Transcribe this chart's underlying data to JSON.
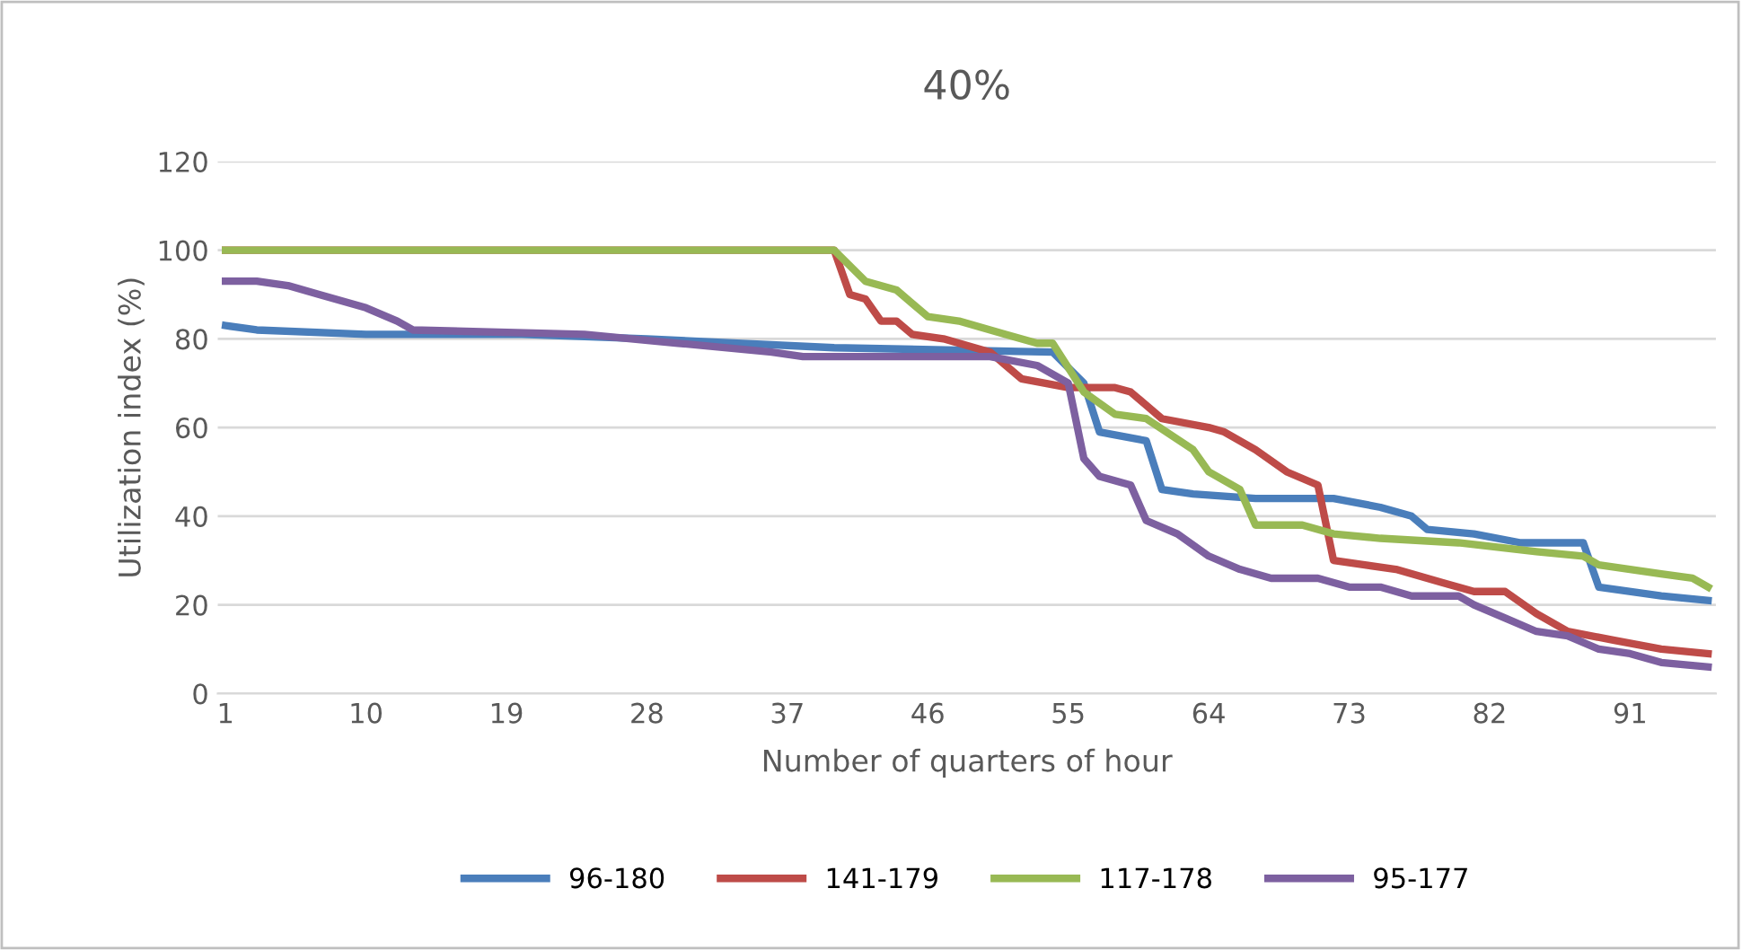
{
  "chart_data": {
    "type": "line",
    "title": "40%",
    "xlabel": "Number of quarters of hour",
    "ylabel": "Utilization index (%)",
    "xlim": [
      0.5,
      96.5
    ],
    "xticks": [
      1,
      10,
      19,
      28,
      37,
      46,
      55,
      64,
      73,
      82,
      91
    ],
    "ylim": [
      0,
      120
    ],
    "yticks": [
      0,
      20,
      40,
      60,
      80,
      100,
      120
    ],
    "grid": "y",
    "legend": "bottom",
    "line_style": "solid",
    "marker": "none",
    "series": [
      {
        "name": "96-180",
        "color": "#4a7ebb",
        "x": [
          1,
          3,
          10,
          20,
          28,
          40,
          54,
          56,
          57,
          60,
          61,
          63,
          67,
          72,
          75,
          77,
          78,
          81,
          84,
          88,
          89,
          93,
          96
        ],
        "values": [
          83,
          82,
          81,
          81,
          80,
          78,
          77,
          70,
          59,
          57,
          46,
          45,
          44,
          44,
          42,
          40,
          37,
          36,
          34,
          34,
          24,
          22,
          21
        ]
      },
      {
        "name": "141-179",
        "color": "#be4b48",
        "x": [
          1,
          40,
          41,
          42,
          43,
          44,
          45,
          47,
          50,
          51,
          52,
          55,
          58,
          59,
          61,
          64,
          65,
          67,
          69,
          71,
          72,
          74,
          76,
          79,
          81,
          83,
          85,
          87,
          90,
          93,
          96
        ],
        "values": [
          100,
          100,
          90,
          89,
          84,
          84,
          81,
          80,
          77,
          74,
          71,
          69,
          69,
          68,
          62,
          60,
          59,
          55,
          50,
          47,
          30,
          29,
          28,
          25,
          23,
          23,
          18,
          14,
          12,
          10,
          9
        ]
      },
      {
        "name": "117-178",
        "color": "#98b954",
        "x": [
          1,
          40,
          42,
          44,
          46,
          48,
          51,
          53,
          54,
          56,
          58,
          60,
          63,
          64,
          66,
          67,
          70,
          72,
          75,
          80,
          85,
          88,
          89,
          93,
          95,
          96
        ],
        "values": [
          100,
          100,
          93,
          91,
          85,
          84,
          81,
          79,
          79,
          68,
          63,
          62,
          55,
          50,
          46,
          38,
          38,
          36,
          35,
          34,
          32,
          31,
          29,
          27,
          26,
          24
        ]
      },
      {
        "name": "95-177",
        "color": "#7d60a0",
        "x": [
          1,
          3,
          5,
          7,
          10,
          12,
          13,
          24,
          30,
          36,
          38,
          50,
          53,
          55,
          56,
          57,
          59,
          60,
          62,
          64,
          66,
          68,
          71,
          73,
          75,
          77,
          80,
          81,
          83,
          85,
          87,
          89,
          91,
          93,
          96
        ],
        "values": [
          93,
          93,
          92,
          90,
          87,
          84,
          82,
          81,
          79,
          77,
          76,
          76,
          74,
          70,
          53,
          49,
          47,
          39,
          36,
          31,
          28,
          26,
          26,
          24,
          24,
          22,
          22,
          20,
          17,
          14,
          13,
          10,
          9,
          7,
          6
        ]
      }
    ]
  }
}
